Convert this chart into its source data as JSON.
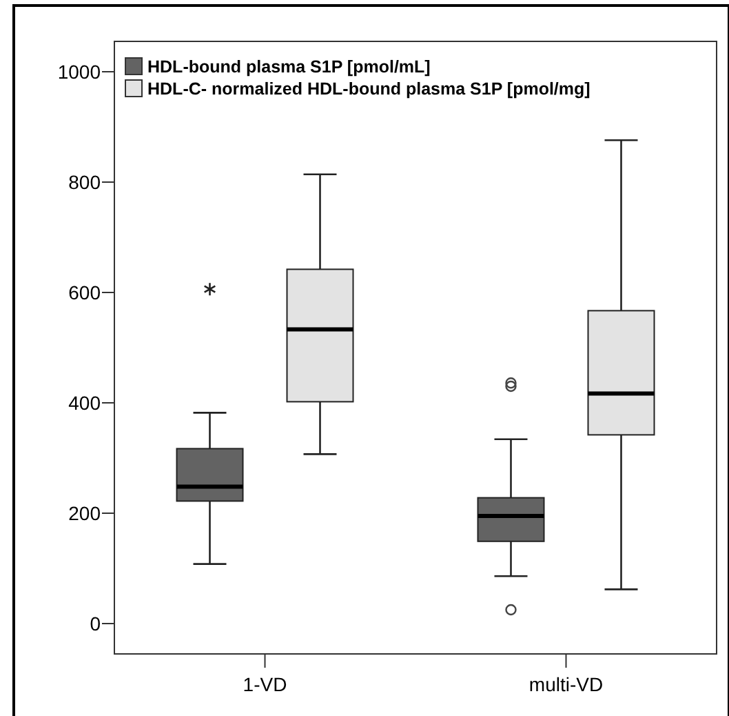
{
  "chart_data": {
    "type": "box",
    "categories": [
      "1-VD",
      "multi-VD"
    ],
    "series": [
      {
        "name": "HDL-bound plasma S1P [pmol/mL]",
        "color": "#636363",
        "boxes": [
          {
            "low": 108,
            "q1": 222,
            "median": 248,
            "q3": 317,
            "high": 382,
            "outliers": [
              606
            ]
          },
          {
            "low": 86,
            "q1": 149,
            "median": 195,
            "q3": 228,
            "high": 334,
            "outliers": [
              430,
              436,
              25
            ]
          }
        ]
      },
      {
        "name": "HDL-C- normalized HDL-bound plasma S1P [pmol/mg]",
        "color": "#e3e3e3",
        "boxes": [
          {
            "low": 307,
            "q1": 402,
            "median": 533,
            "q3": 642,
            "high": 814
          },
          {
            "low": 62,
            "q1": 342,
            "median": 417,
            "q3": 567,
            "high": 876
          }
        ]
      }
    ],
    "ylim": [
      -55,
      1055
    ],
    "yticks": [
      0,
      200,
      400,
      600,
      800,
      1000
    ],
    "grid": false,
    "legend": "top left"
  }
}
